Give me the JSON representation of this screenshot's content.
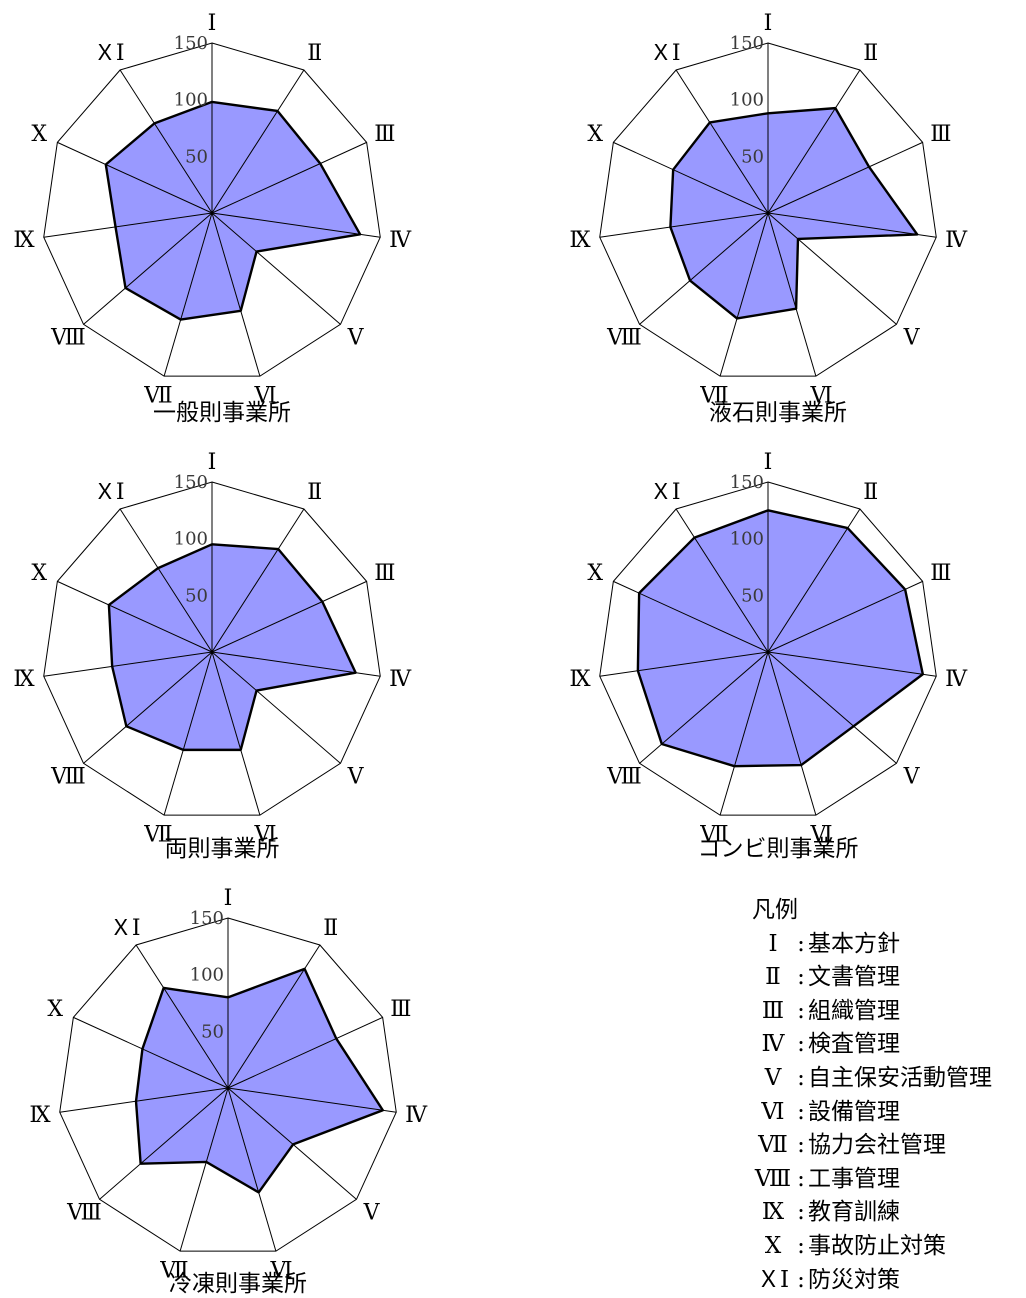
{
  "axes": [
    "Ⅰ",
    "Ⅱ",
    "Ⅲ",
    "Ⅳ",
    "Ⅴ",
    "Ⅵ",
    "Ⅶ",
    "Ⅷ",
    "Ⅸ",
    "Ⅹ",
    "ＸⅠ"
  ],
  "colors": {
    "fill": "#9999ff",
    "stroke": "#000000",
    "grid": "#000000"
  },
  "chart_data": [
    {
      "type": "radar",
      "title": "一般則事業所",
      "categories": [
        "Ⅰ",
        "Ⅱ",
        "Ⅲ",
        "Ⅳ",
        "Ⅴ",
        "Ⅵ",
        "Ⅶ",
        "Ⅷ",
        "Ⅸ",
        "Ⅹ",
        "ＸⅠ"
      ],
      "ticks": [
        50,
        100,
        150
      ],
      "rmax": 150,
      "values": [
        98,
        107,
        105,
        132,
        52,
        90,
        98,
        101,
        86,
        103,
        94
      ]
    },
    {
      "type": "radar",
      "title": "液石則事業所",
      "categories": [
        "Ⅰ",
        "Ⅱ",
        "Ⅲ",
        "Ⅳ",
        "Ⅴ",
        "Ⅵ",
        "Ⅶ",
        "Ⅷ",
        "Ⅸ",
        "Ⅹ",
        "ＸⅠ"
      ],
      "ticks": [
        50,
        100,
        150
      ],
      "rmax": 150,
      "values": [
        88,
        110,
        98,
        133,
        35,
        88,
        97,
        91,
        87,
        92,
        95
      ]
    },
    {
      "type": "radar",
      "title": "両則事業所",
      "categories": [
        "Ⅰ",
        "Ⅱ",
        "Ⅲ",
        "Ⅳ",
        "Ⅴ",
        "Ⅵ",
        "Ⅶ",
        "Ⅷ",
        "Ⅸ",
        "Ⅹ",
        "ＸⅠ"
      ],
      "ticks": [
        50,
        100,
        150
      ],
      "rmax": 150,
      "values": [
        95,
        108,
        107,
        128,
        52,
        90,
        90,
        100,
        89,
        100,
        88
      ]
    },
    {
      "type": "radar",
      "title": "コンビ則事業所",
      "categories": [
        "Ⅰ",
        "Ⅱ",
        "Ⅲ",
        "Ⅳ",
        "Ⅴ",
        "Ⅵ",
        "Ⅶ",
        "Ⅷ",
        "Ⅸ",
        "Ⅹ",
        "ＸⅠ"
      ],
      "ticks": [
        50,
        100,
        150
      ],
      "rmax": 150,
      "values": [
        125,
        130,
        133,
        138,
        100,
        104,
        105,
        124,
        116,
        125,
        120
      ]
    },
    {
      "type": "radar",
      "title": "冷凍則事業所",
      "categories": [
        "Ⅰ",
        "Ⅱ",
        "Ⅲ",
        "Ⅳ",
        "Ⅴ",
        "Ⅵ",
        "Ⅶ",
        "Ⅷ",
        "Ⅸ",
        "Ⅹ",
        "ＸⅠ"
      ],
      "ticks": [
        50,
        100,
        150
      ],
      "rmax": 150,
      "values": [
        80,
        125,
        105,
        138,
        76,
        96,
        68,
        102,
        82,
        83,
        105
      ]
    }
  ],
  "legend": {
    "title": "凡例",
    "items": [
      {
        "key": "Ⅰ",
        "label": "基本方針"
      },
      {
        "key": "Ⅱ",
        "label": "文書管理"
      },
      {
        "key": "Ⅲ",
        "label": "組織管理"
      },
      {
        "key": "Ⅳ",
        "label": "検査管理"
      },
      {
        "key": "Ⅴ",
        "label": "自主保安活動管理"
      },
      {
        "key": "Ⅵ",
        "label": "設備管理"
      },
      {
        "key": "Ⅶ",
        "label": "協力会社管理"
      },
      {
        "key": "Ⅷ",
        "label": "工事管理"
      },
      {
        "key": "Ⅸ",
        "label": "教育訓練"
      },
      {
        "key": "Ⅹ",
        "label": "事故防止対策"
      },
      {
        "key": "ＸⅠ",
        "label": "防災対策"
      }
    ]
  }
}
